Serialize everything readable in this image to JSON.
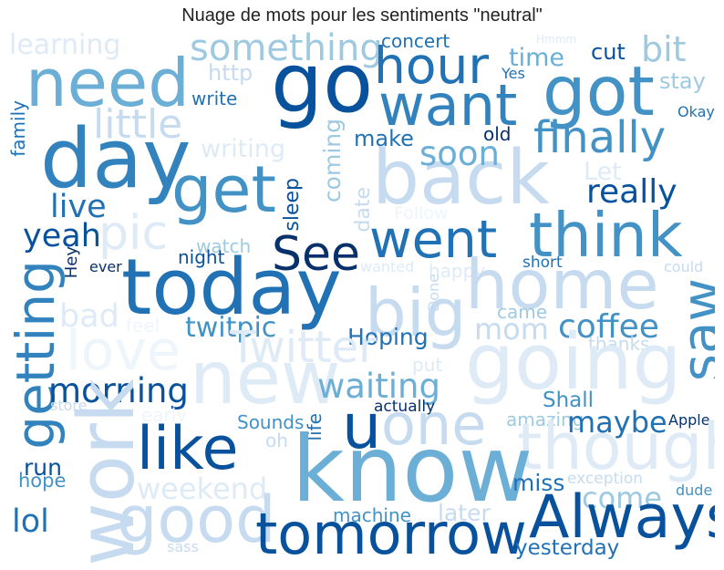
{
  "title": "Nuage de mots pour les sentiments \"neutral\"",
  "palette": {
    "c1": "#08306b",
    "c2": "#08519c",
    "c3": "#2171b5",
    "c4": "#4292c6",
    "c5": "#6baed6",
    "c6": "#9ecae1",
    "c7": "#c6dbef",
    "c8": "#deebf7",
    "c9": "#eef5fb"
  },
  "words": [
    {
      "text": "learning",
      "color": "#deebf7"
    },
    {
      "text": "need",
      "color": "#6baed6"
    },
    {
      "text": "day",
      "color": "#3182bd"
    },
    {
      "text": "little",
      "color": "#c6dbef"
    },
    {
      "text": "get",
      "color": "#4292c6"
    },
    {
      "text": "pic",
      "color": "#deebf7"
    },
    {
      "text": "something",
      "color": "#9ecae1"
    },
    {
      "text": "go",
      "color": "#08519c"
    },
    {
      "text": "hour",
      "color": "#2171b5"
    },
    {
      "text": "want",
      "color": "#3182bd"
    },
    {
      "text": "got",
      "color": "#4292c6"
    },
    {
      "text": "concert",
      "color": "#2171b5"
    },
    {
      "text": "Hmmm",
      "color": "#deebf7"
    },
    {
      "text": "bit",
      "color": "#9ecae1"
    },
    {
      "text": "cut",
      "color": "#08519c"
    },
    {
      "text": "time",
      "color": "#6baed6"
    },
    {
      "text": "Yes",
      "color": "#2171b5"
    },
    {
      "text": "stay",
      "color": "#9ecae1"
    },
    {
      "text": "http",
      "color": "#c6dbef"
    },
    {
      "text": "write",
      "color": "#2171b5"
    },
    {
      "text": "Okay",
      "color": "#2171b5"
    },
    {
      "text": "family",
      "color": "#2171b5"
    },
    {
      "text": "writing",
      "color": "#deebf7"
    },
    {
      "text": "make",
      "color": "#2171b5"
    },
    {
      "text": "old",
      "color": "#08306b"
    },
    {
      "text": "finally",
      "color": "#4292c6"
    },
    {
      "text": "back",
      "color": "#c6dbef"
    },
    {
      "text": "soon",
      "color": "#6baed6"
    },
    {
      "text": "Let",
      "color": "#deebf7"
    },
    {
      "text": "coming",
      "color": "#9ecae1"
    },
    {
      "text": "sleep",
      "color": "#08519c"
    },
    {
      "text": "date",
      "color": "#c6dbef"
    },
    {
      "text": "Follow",
      "color": "#eef5fb"
    },
    {
      "text": "really",
      "color": "#08519c"
    },
    {
      "text": "live",
      "color": "#2171b5"
    },
    {
      "text": "yeah",
      "color": "#08519c"
    },
    {
      "text": "watch",
      "color": "#9ecae1"
    },
    {
      "text": "night",
      "color": "#08519c"
    },
    {
      "text": "Hey",
      "color": "#08306b"
    },
    {
      "text": "ever",
      "color": "#08306b"
    },
    {
      "text": "See",
      "color": "#08306b"
    },
    {
      "text": "went",
      "color": "#2171b5"
    },
    {
      "text": "think",
      "color": "#4292c6"
    },
    {
      "text": "today",
      "color": "#2171b5"
    },
    {
      "text": "getting",
      "color": "#3182bd"
    },
    {
      "text": "bad",
      "color": "#deebf7"
    },
    {
      "text": "feel",
      "color": "#eef5fb"
    },
    {
      "text": "twitpic",
      "color": "#4292c6"
    },
    {
      "text": "big",
      "color": "#c6dbef"
    },
    {
      "text": "wanted",
      "color": "#deebf7"
    },
    {
      "text": "happy",
      "color": "#deebf7"
    },
    {
      "text": "Done",
      "color": "#c6dbef"
    },
    {
      "text": "short",
      "color": "#2171b5"
    },
    {
      "text": "could",
      "color": "#c6dbef"
    },
    {
      "text": "home",
      "color": "#c6dbef"
    },
    {
      "text": "saw",
      "color": "#4292c6"
    },
    {
      "text": "came",
      "color": "#9ecae1"
    },
    {
      "text": "mom",
      "color": "#c6dbef"
    },
    {
      "text": "coffee",
      "color": "#4292c6"
    },
    {
      "text": "Hoping",
      "color": "#2171b5"
    },
    {
      "text": "thanks",
      "color": "#c6dbef"
    },
    {
      "text": "love",
      "color": "#eef5fb"
    },
    {
      "text": "Twitter",
      "color": "#deebf7"
    },
    {
      "text": "morning",
      "color": "#08519c"
    },
    {
      "text": "new",
      "color": "#deebf7"
    },
    {
      "text": "waiting",
      "color": "#6baed6"
    },
    {
      "text": "put",
      "color": "#deebf7"
    },
    {
      "text": "going",
      "color": "#deebf7"
    },
    {
      "text": "work",
      "color": "#c6dbef"
    },
    {
      "text": "store",
      "color": "#c6dbef"
    },
    {
      "text": "early",
      "color": "#eef5fb"
    },
    {
      "text": "actually",
      "color": "#08306b"
    },
    {
      "text": "Shall",
      "color": "#4292c6"
    },
    {
      "text": "u",
      "color": "#08519c"
    },
    {
      "text": "one",
      "color": "#c6dbef"
    },
    {
      "text": "Sounds",
      "color": "#4292c6"
    },
    {
      "text": "amazing",
      "color": "#9ecae1"
    },
    {
      "text": "maybe",
      "color": "#2171b5"
    },
    {
      "text": "Apple",
      "color": "#08306b"
    },
    {
      "text": "oh",
      "color": "#c6dbef"
    },
    {
      "text": "life",
      "color": "#2171b5"
    },
    {
      "text": "like",
      "color": "#08519c"
    },
    {
      "text": "though",
      "color": "#deebf7"
    },
    {
      "text": "know",
      "color": "#6baed6"
    },
    {
      "text": "hope",
      "color": "#4292c6"
    },
    {
      "text": "run",
      "color": "#08519c"
    },
    {
      "text": "weekend",
      "color": "#deebf7"
    },
    {
      "text": "miss",
      "color": "#2171b5"
    },
    {
      "text": "exception",
      "color": "#c6dbef"
    },
    {
      "text": "dude",
      "color": "#4292c6"
    },
    {
      "text": "lol",
      "color": "#2171b5"
    },
    {
      "text": "good",
      "color": "#c6dbef"
    },
    {
      "text": "come",
      "color": "#9ecae1"
    },
    {
      "text": "machine",
      "color": "#4292c6"
    },
    {
      "text": "later",
      "color": "#c6dbef"
    },
    {
      "text": "tomorrow",
      "color": "#08519c"
    },
    {
      "text": "Always",
      "color": "#08519c"
    },
    {
      "text": "sass",
      "color": "#c6dbef"
    },
    {
      "text": "yesterday",
      "color": "#2171b5"
    }
  ]
}
